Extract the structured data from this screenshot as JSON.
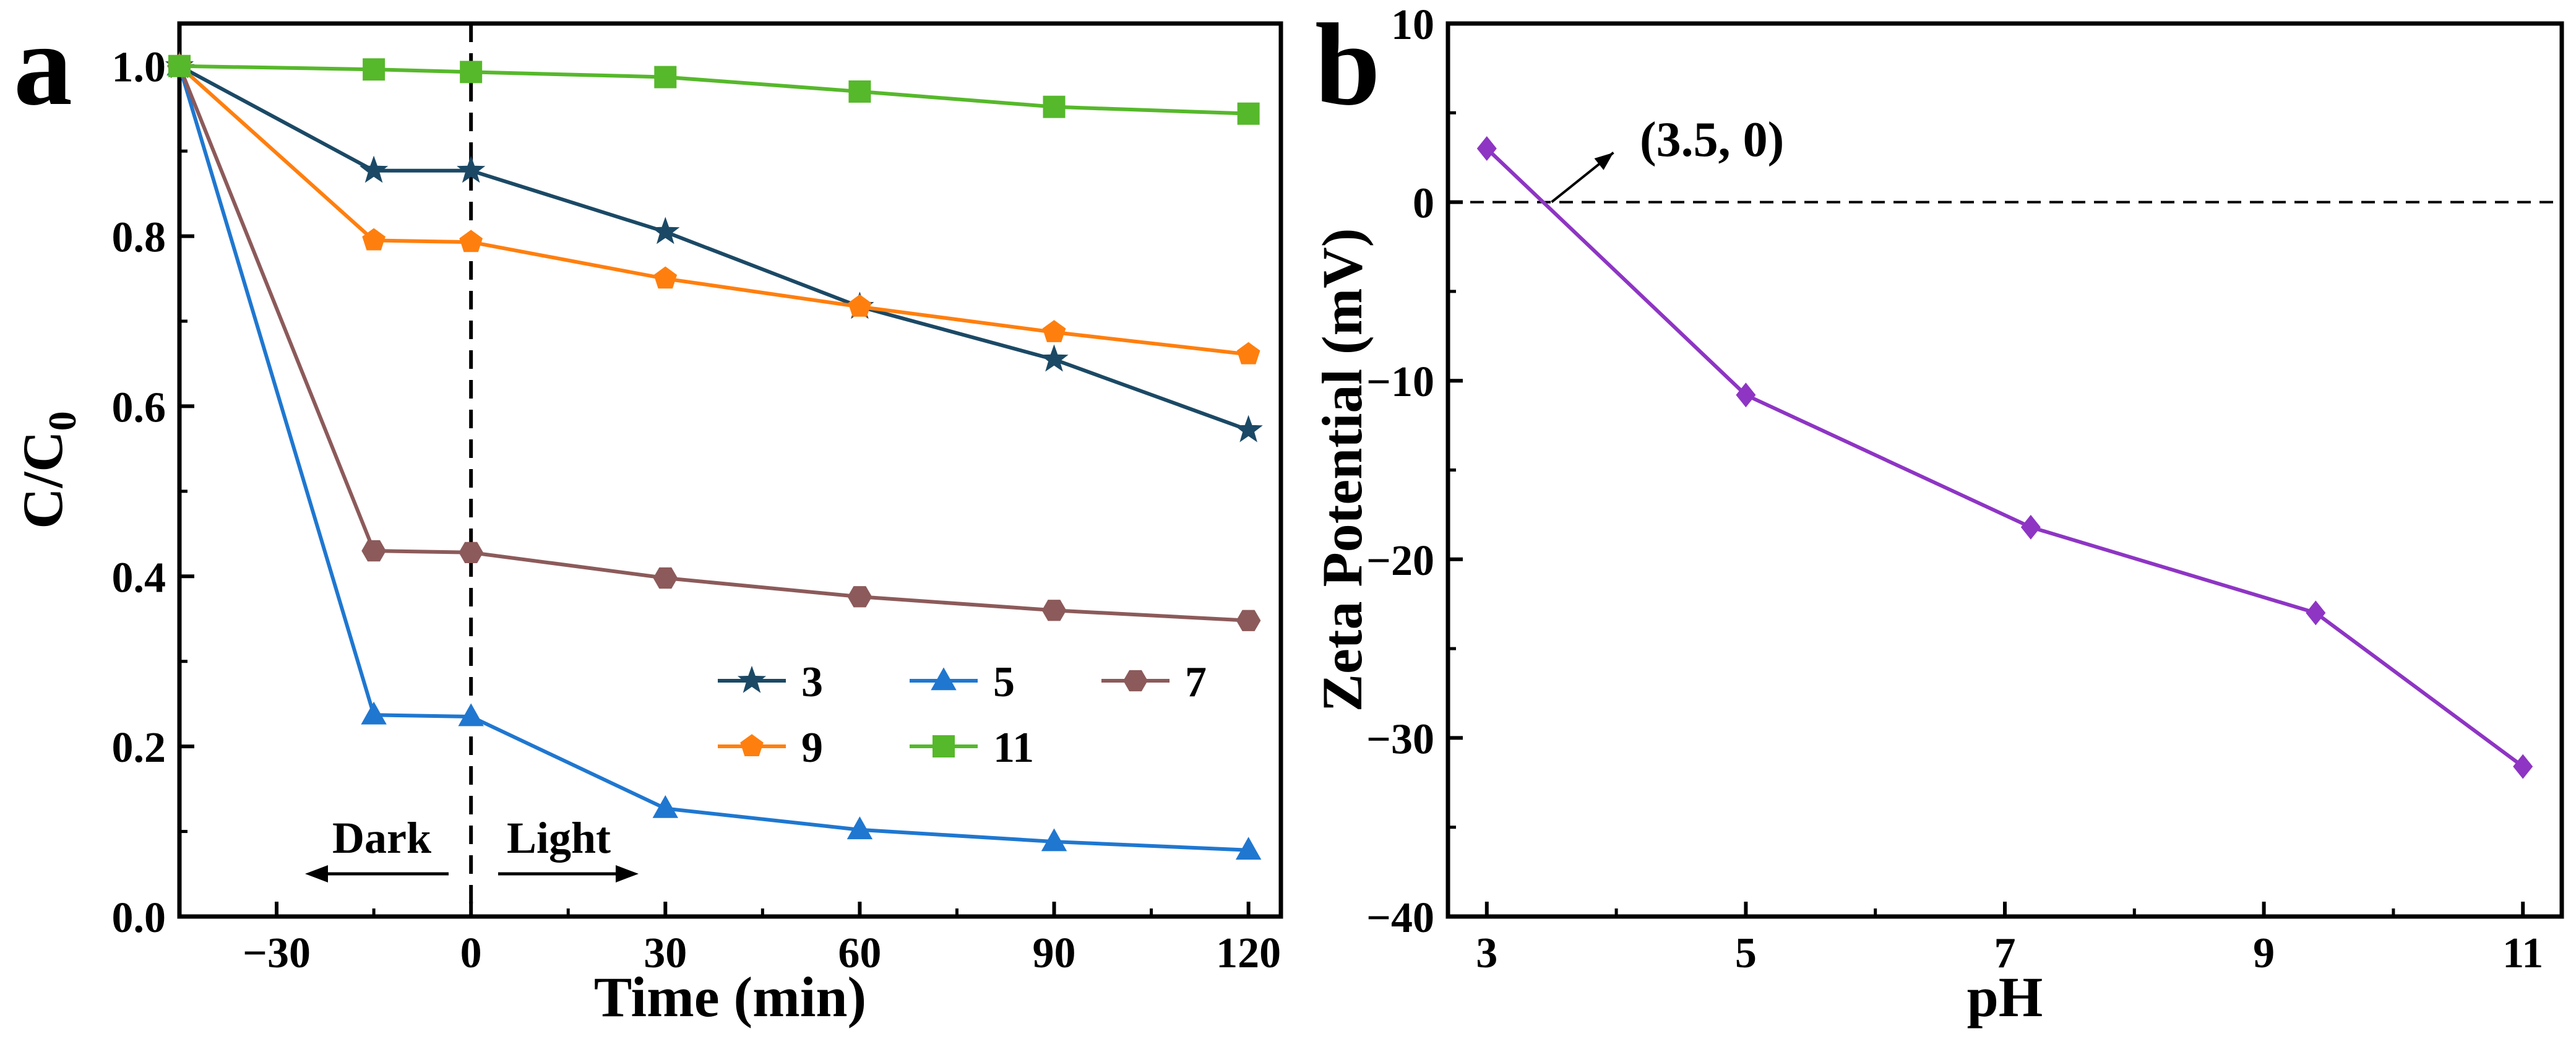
{
  "chart_data": [
    {
      "panel": "a",
      "type": "line",
      "xlabel": "Time (min)",
      "ylabel_main": "C/C",
      "ylabel_sub": "0",
      "xlim": [
        -45,
        125
      ],
      "ylim": [
        0,
        1.05
      ],
      "xticks": [
        -30,
        0,
        30,
        60,
        90,
        120
      ],
      "xtick_labels": [
        "−30",
        "0",
        "30",
        "60",
        "90",
        "120"
      ],
      "yticks": [
        0.0,
        0.2,
        0.4,
        0.6,
        0.8,
        1.0
      ],
      "ytick_labels": [
        "0.0",
        "0.2",
        "0.4",
        "0.6",
        "0.8",
        "1.0"
      ],
      "x": [
        -45,
        -15,
        0,
        30,
        60,
        90,
        120
      ],
      "series": [
        {
          "name": "3",
          "color": "#1b4965",
          "marker": "star",
          "values": [
            1.0,
            0.877,
            0.877,
            0.805,
            0.717,
            0.655,
            0.572
          ]
        },
        {
          "name": "5",
          "color": "#1f77d0",
          "marker": "triangle",
          "values": [
            1.0,
            0.237,
            0.235,
            0.127,
            0.102,
            0.088,
            0.078
          ]
        },
        {
          "name": "7",
          "color": "#8c5a5a",
          "marker": "hexagon",
          "values": [
            1.0,
            0.43,
            0.428,
            0.398,
            0.376,
            0.36,
            0.348
          ]
        },
        {
          "name": "9",
          "color": "#ff7f0e",
          "marker": "pentagon",
          "values": [
            1.0,
            0.795,
            0.793,
            0.75,
            0.717,
            0.687,
            0.661
          ]
        },
        {
          "name": "11",
          "color": "#56b82b",
          "marker": "square",
          "values": [
            1.0,
            0.996,
            0.993,
            0.987,
            0.97,
            0.952,
            0.944
          ]
        }
      ],
      "divider_x": 0,
      "annotations": {
        "dark": "Dark",
        "light": "Light"
      },
      "legend_position": "bottom-right"
    },
    {
      "panel": "b",
      "type": "line",
      "xlabel": "pH",
      "ylabel": "Zeta Potential (mV)",
      "xlim": [
        2.7,
        11.3
      ],
      "ylim": [
        -40,
        10
      ],
      "xticks": [
        3,
        5,
        7,
        9,
        11
      ],
      "xtick_labels": [
        "3",
        "5",
        "7",
        "9",
        "11"
      ],
      "yticks": [
        -40,
        -30,
        -20,
        -10,
        0,
        10
      ],
      "ytick_labels": [
        "−40",
        "−30",
        "−20",
        "−10",
        "0",
        "10"
      ],
      "series": [
        {
          "name": "Zeta potential",
          "color": "#8e35c4",
          "marker": "diamond",
          "x": [
            3,
            5,
            7.2,
            9.4,
            11
          ],
          "values": [
            3.0,
            -10.8,
            -18.2,
            -23.0,
            -31.6
          ]
        }
      ],
      "zero_line": 0,
      "annotation": {
        "text": "(3.5, 0)",
        "point": [
          3.5,
          0
        ]
      }
    }
  ]
}
